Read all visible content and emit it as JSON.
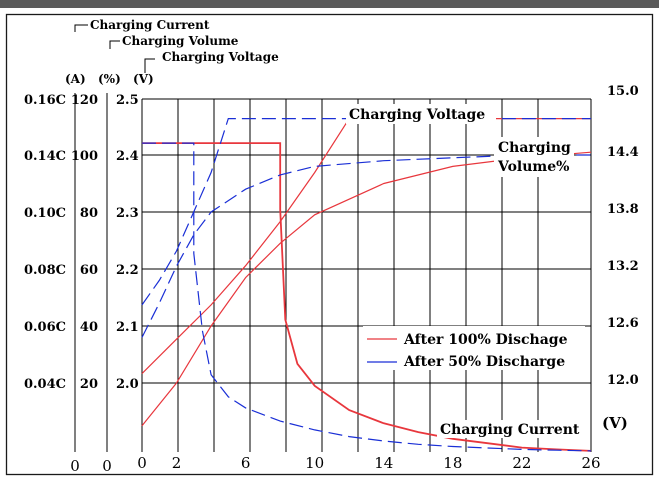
{
  "chart_data": {
    "type": "line",
    "title": "",
    "legend_position": "lower-right",
    "grid": true,
    "colors": {
      "charge_100": "#e8373d",
      "charge_50": "#1a2fd6",
      "grid": "#000000",
      "frame": "#1a1a1a"
    },
    "x_axis": {
      "unit_ticks": [
        "0",
        "0",
        "0"
      ],
      "ticks": [
        0,
        2,
        6,
        10,
        14,
        18,
        22,
        26
      ],
      "tick_labels": [
        "0",
        "2",
        "6",
        "10",
        "14",
        "18",
        "22",
        "26"
      ],
      "range": [
        0,
        26
      ],
      "label": ""
    },
    "axis_headers": {
      "current": "Charging Current",
      "volume": "Charging Volume",
      "voltage": "Charging Voltage",
      "unit_current": "(A)",
      "unit_volume": "(%)",
      "unit_voltage": "(V)"
    },
    "left_axes": {
      "current_labels": [
        "0.16C",
        "0.14C",
        "0.10C",
        "0.08C",
        "0.06C",
        "0.04C"
      ],
      "volume_labels": [
        "120",
        "100",
        "80",
        "60",
        "40",
        "20"
      ],
      "cell_voltage_labels": [
        "2.5",
        "2.4",
        "2.3",
        "2.2",
        "2.1",
        "2.0"
      ]
    },
    "right_axis": {
      "labels": [
        "15.0",
        "14.4",
        "13.8",
        "13.2",
        "12.6",
        "12.0"
      ],
      "unit": "(V)",
      "range": [
        11.4,
        15.0
      ]
    },
    "curve_labels": {
      "voltage": "Charging Voltage",
      "volume_line1": "Charging",
      "volume_line2": "Volume%",
      "current": "Charging Current"
    },
    "legend": [
      "After 100% Dischage",
      "After 50% Discharge"
    ],
    "series": [
      {
        "name": "After 100% Dischage",
        "quantity": "Charging Voltage",
        "style": "solid",
        "x": [
          0,
          2,
          4,
          6,
          8,
          10,
          12,
          16,
          20,
          24,
          26
        ],
        "y": [
          12.2,
          12.55,
          12.9,
          13.3,
          13.75,
          14.25,
          14.8,
          14.8,
          14.8,
          14.8,
          14.8
        ]
      },
      {
        "name": "After 100% Dischage",
        "quantity": "Charging Volume",
        "style": "solid",
        "x": [
          0,
          2,
          4,
          6,
          8,
          10,
          14,
          18,
          22,
          26
        ],
        "y": [
          5,
          20,
          40,
          57,
          69,
          79,
          90,
          96,
          99,
          101
        ]
      },
      {
        "name": "After 100% Dischage",
        "quantity": "Charging Current",
        "style": "solid",
        "x": [
          0,
          8,
          8,
          8.3,
          9,
          10,
          12,
          14,
          16,
          18,
          20,
          22,
          24,
          26
        ],
        "y": [
          0.14,
          0.14,
          0.11,
          0.06,
          0.04,
          0.03,
          0.019,
          0.013,
          0.009,
          0.006,
          0.004,
          0.002,
          0.0012,
          0.0005
        ]
      },
      {
        "name": "After 50% Discharge",
        "quantity": "Charging Voltage",
        "style": "dashed",
        "x": [
          0,
          1,
          2,
          3,
          4,
          5,
          7,
          9,
          11,
          13,
          16,
          20,
          26
        ],
        "y": [
          12.9,
          13.15,
          13.45,
          13.85,
          14.25,
          14.8,
          14.8,
          14.8,
          14.8,
          14.8,
          14.8,
          14.8,
          14.8
        ]
      },
      {
        "name": "After 50% Discharge",
        "quantity": "Charging Volume",
        "style": "dashed",
        "x": [
          0,
          1,
          2,
          3,
          4,
          6,
          8,
          10,
          14,
          18,
          22,
          26
        ],
        "y": [
          36,
          48,
          61,
          72,
          80,
          88,
          93,
          96,
          98,
          99,
          100,
          100
        ]
      },
      {
        "name": "After 50% Discharge",
        "quantity": "Charging Current",
        "style": "dashed",
        "x": [
          0,
          3,
          3,
          3.5,
          4,
          5,
          6,
          8,
          10,
          12,
          14,
          16,
          18,
          20,
          22,
          24,
          26
        ],
        "y": [
          0.14,
          0.14,
          0.09,
          0.055,
          0.035,
          0.025,
          0.02,
          0.014,
          0.01,
          0.007,
          0.005,
          0.0035,
          0.0025,
          0.0018,
          0.0012,
          0.0008,
          0.0005
        ]
      }
    ]
  }
}
